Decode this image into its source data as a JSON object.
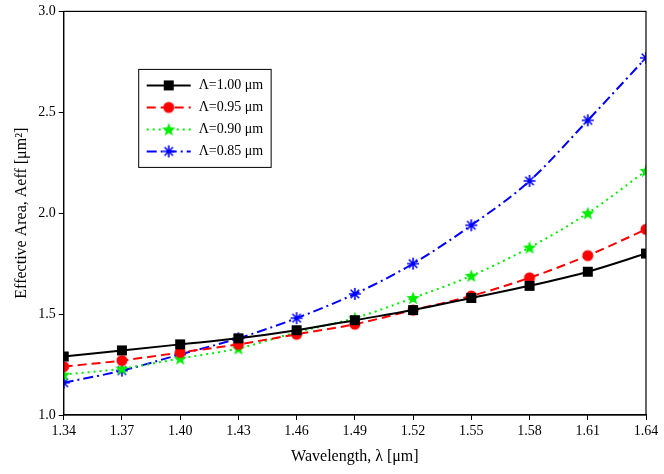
{
  "chart_data": {
    "type": "line",
    "x_label": "Wavelength, λ [μm]",
    "y_label": "Effective Area, Aeff [μm²]",
    "x": [
      1.34,
      1.37,
      1.4,
      1.43,
      1.46,
      1.49,
      1.52,
      1.55,
      1.58,
      1.61,
      1.64
    ],
    "series": [
      {
        "name": "Λ=1.00 μm",
        "color": "#000000",
        "marker": "square",
        "line_style": "solid",
        "values": [
          1.29,
          1.32,
          1.35,
          1.38,
          1.42,
          1.47,
          1.52,
          1.58,
          1.64,
          1.71,
          1.8
        ]
      },
      {
        "name": "Λ=0.95 μm",
        "color": "#ff0000",
        "marker": "circle",
        "line_style": "dashed",
        "values": [
          1.24,
          1.27,
          1.31,
          1.35,
          1.4,
          1.45,
          1.52,
          1.59,
          1.68,
          1.79,
          1.92
        ]
      },
      {
        "name": "Λ=0.90 μm",
        "color": "#00ee00",
        "marker": "star",
        "line_style": "dotted",
        "values": [
          1.2,
          1.23,
          1.28,
          1.33,
          1.41,
          1.48,
          1.58,
          1.69,
          1.83,
          2.0,
          2.21
        ]
      },
      {
        "name": "Λ=0.85 μm",
        "color": "#0000ff",
        "marker": "asterisk",
        "line_style": "dashdot",
        "values": [
          1.16,
          1.22,
          1.3,
          1.38,
          1.48,
          1.6,
          1.75,
          1.94,
          2.16,
          2.46,
          2.77
        ]
      }
    ],
    "xlim": [
      1.34,
      1.64
    ],
    "xticks": [
      1.34,
      1.37,
      {
        "value": 1.4,
        "label": "1.40"
      },
      1.43,
      1.46,
      1.49,
      1.52,
      1.55,
      1.58,
      1.61,
      1.64
    ],
    "ylim": [
      1.0,
      3.0
    ],
    "yticks": [
      {
        "value": 1.0,
        "label": "1.0"
      },
      1.5,
      {
        "value": 2.0,
        "label": "2.0"
      },
      2.5,
      {
        "value": 3.0,
        "label": "3.0"
      }
    ],
    "grid": false,
    "legend": "upper left"
  }
}
